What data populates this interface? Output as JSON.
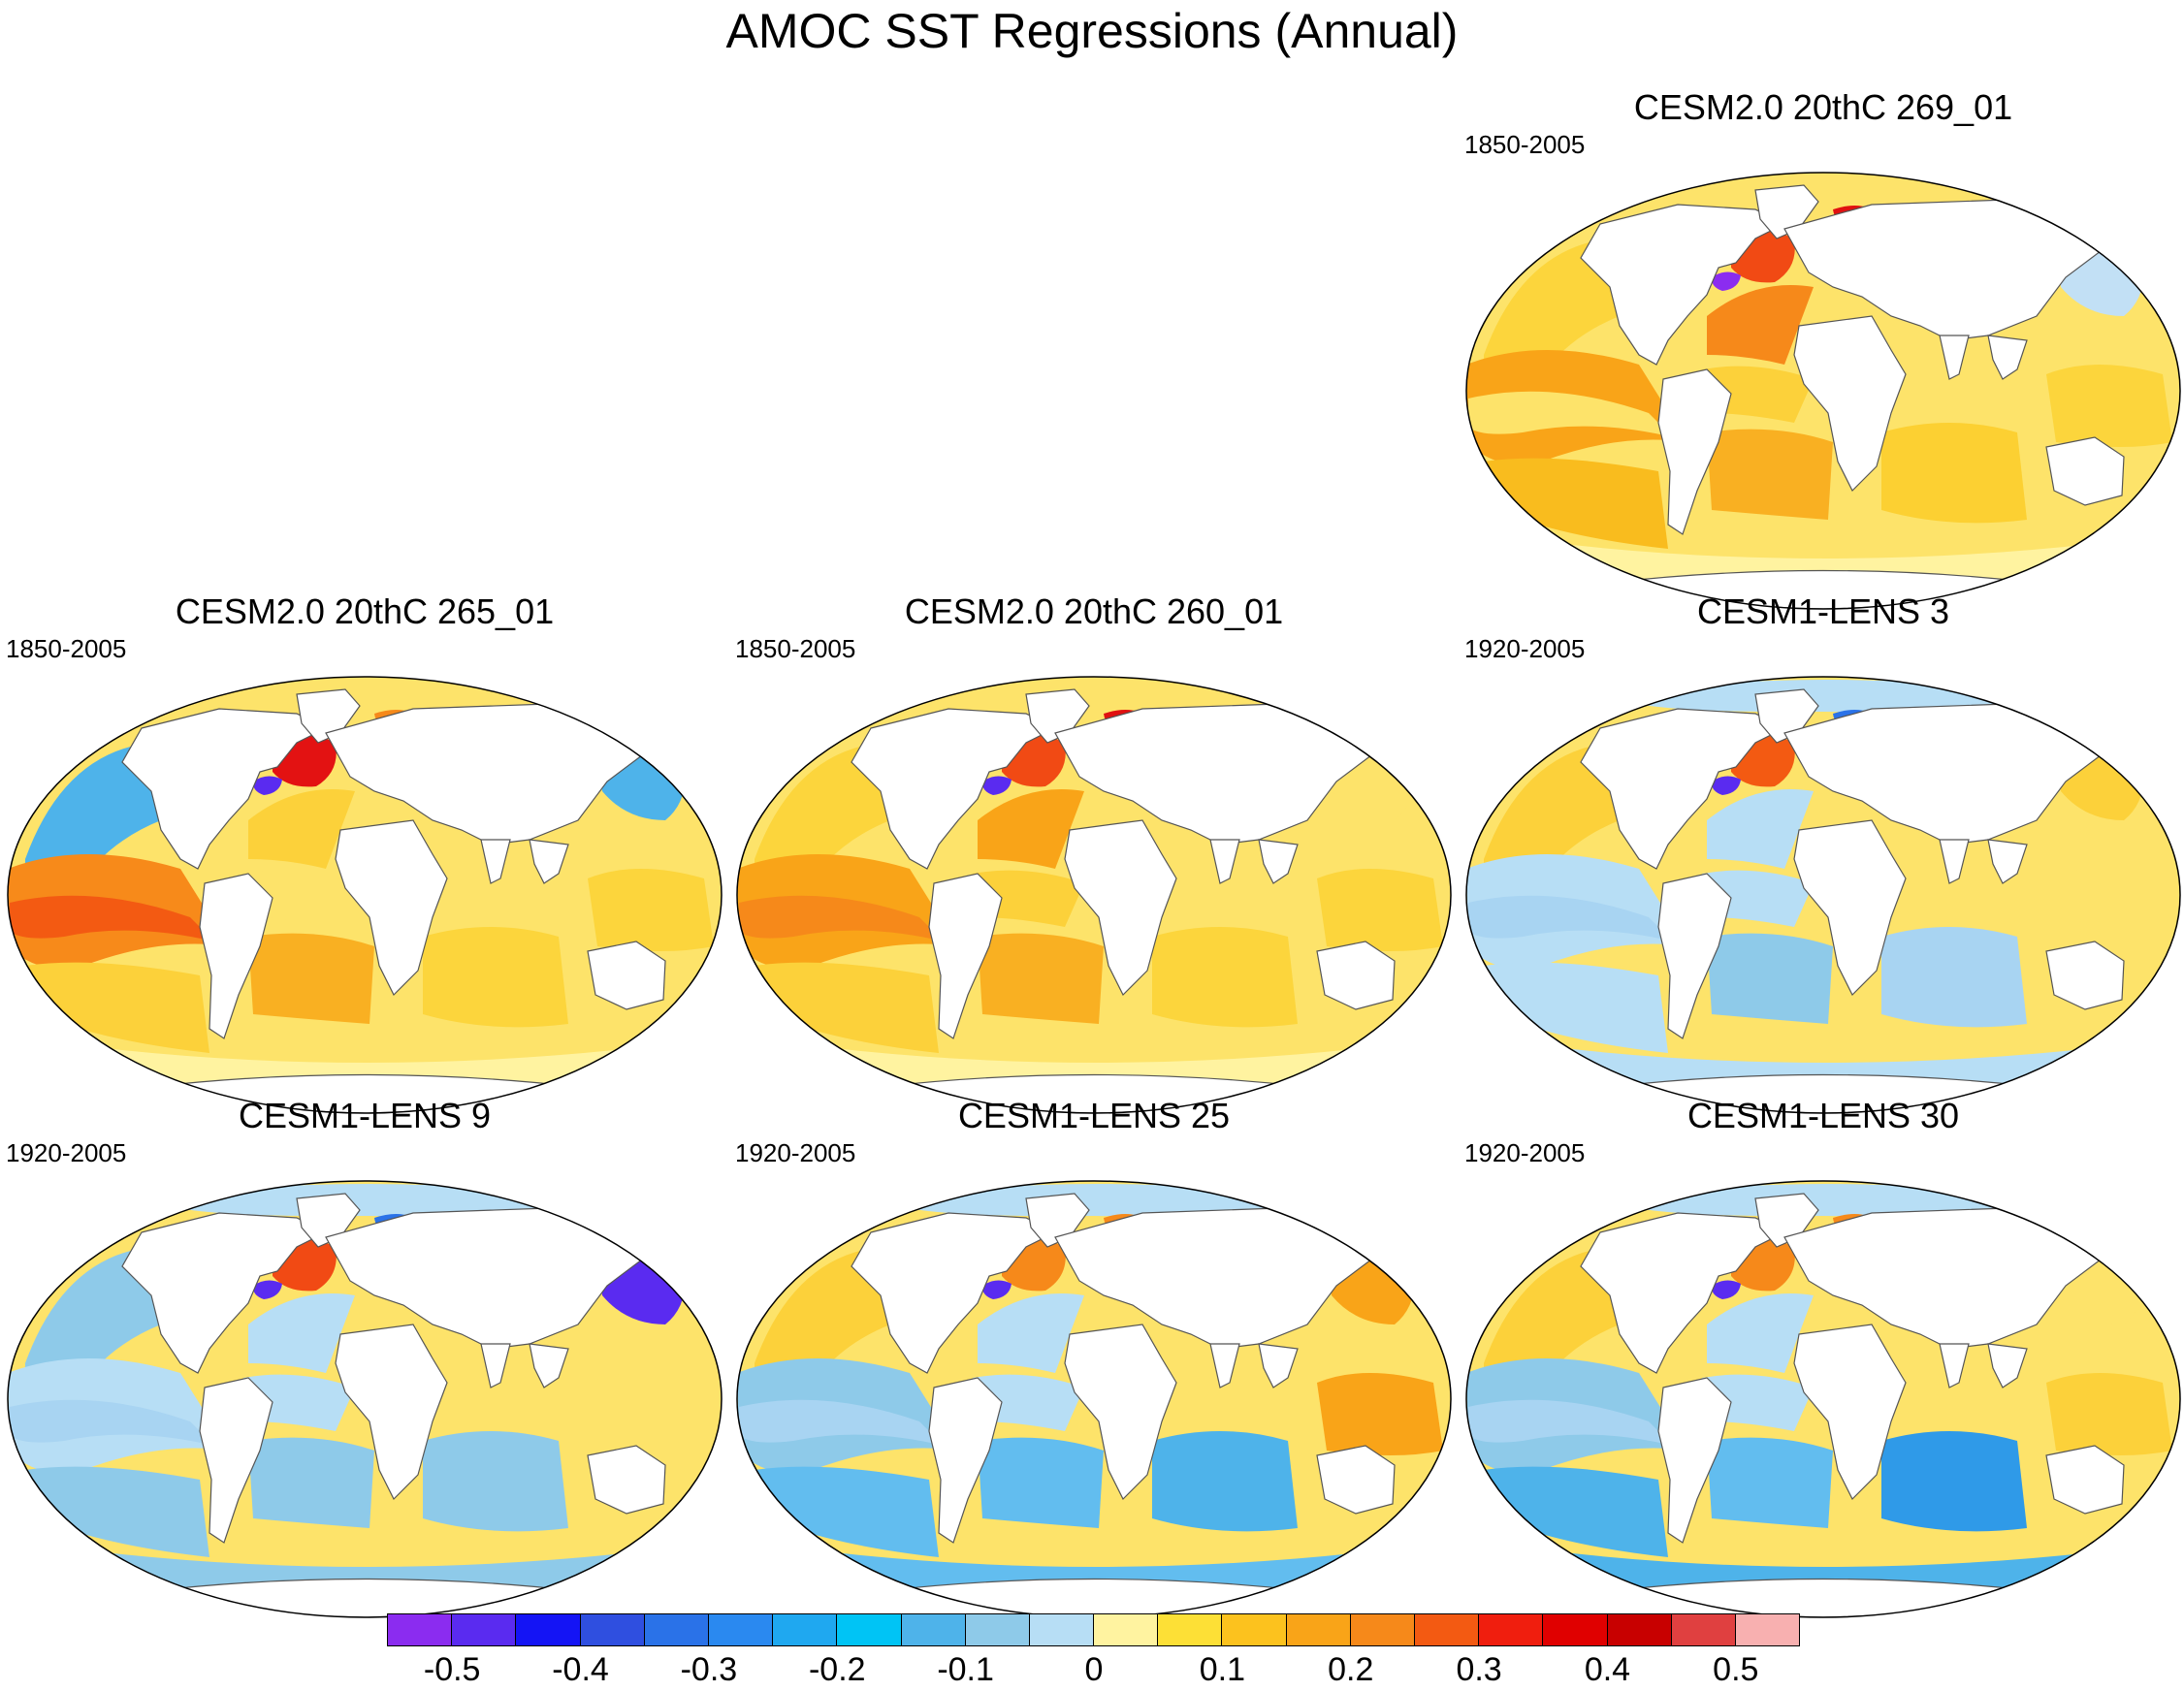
{
  "title": "AMOC SST Regressions (Annual)",
  "panels": [
    {
      "title": "CESM2.0 20thC 269_01",
      "period": "1850-2005",
      "regions": {
        "north-pacific": "#fcd53c",
        "tropical-pacific": "#f9a418",
        "equatorial-pacific": "#fde36a",
        "south-pacific": "#f9bc1e",
        "north-atlantic": "#f6891a",
        "subpolar-gyre": "#f14a14",
        "labrador-coast": "#8b2cf0",
        "tropical-atlantic": "#fcd13a",
        "south-atlantic": "#f9b022",
        "indian-ocean": "#fcd032",
        "southern-ocean": "#fff3a0",
        "arctic": "#fde36a",
        "barents-sea": "#e01010",
        "west-pacific": "#fcd53c",
        "kuroshio": "#c2e0f5"
      }
    },
    {
      "title": "CESM2.0 20thC 265_01",
      "period": "1850-2005",
      "regions": {
        "north-pacific": "#4eb3ea",
        "tropical-pacific": "#f78a1a",
        "equatorial-pacific": "#f35a12",
        "south-pacific": "#fcd13a",
        "north-atlantic": "#fcd13a",
        "subpolar-gyre": "#e31212",
        "labrador-coast": "#5a2bf0",
        "tropical-atlantic": "#fde36a",
        "south-atlantic": "#f9b022",
        "indian-ocean": "#fcd53c",
        "southern-ocean": "#fff3a0",
        "arctic": "#fde36a",
        "barents-sea": "#f6891a",
        "west-pacific": "#fcd53c",
        "kuroshio": "#4eb3ea"
      }
    },
    {
      "title": "CESM2.0 20thC 260_01",
      "period": "1850-2005",
      "regions": {
        "north-pacific": "#fcd53c",
        "tropical-pacific": "#f9a418",
        "equatorial-pacific": "#f6891a",
        "south-pacific": "#fcd13a",
        "north-atlantic": "#f9a418",
        "subpolar-gyre": "#f14a14",
        "labrador-coast": "#5a2bf0",
        "tropical-atlantic": "#fcd13a",
        "south-atlantic": "#f9b022",
        "indian-ocean": "#fcd53c",
        "southern-ocean": "#fff3a0",
        "arctic": "#fde36a",
        "barents-sea": "#e01010",
        "west-pacific": "#fcd53c",
        "kuroshio": "#fde36a"
      }
    },
    {
      "title": "CESM1-LENS 3",
      "period": "1920-2005",
      "regions": {
        "north-pacific": "#fcd13a",
        "tropical-pacific": "#b7def5",
        "equatorial-pacific": "#a8d4f2",
        "south-pacific": "#b7def5",
        "north-atlantic": "#b7def5",
        "subpolar-gyre": "#f35a12",
        "labrador-coast": "#5a2bf0",
        "tropical-atlantic": "#b7def5",
        "south-atlantic": "#8ecae9",
        "indian-ocean": "#a8d4f2",
        "southern-ocean": "#b7def5",
        "arctic": "#b7def5",
        "barents-sea": "#2a72e8",
        "west-pacific": "#fde36a",
        "kuroshio": "#fcd13a"
      }
    },
    {
      "title": "CESM1-LENS 9",
      "period": "1920-2005",
      "regions": {
        "north-pacific": "#8ecae9",
        "tropical-pacific": "#b7def5",
        "equatorial-pacific": "#a8d4f2",
        "south-pacific": "#8ecae9",
        "north-atlantic": "#b7def5",
        "subpolar-gyre": "#f14a14",
        "labrador-coast": "#5a2bf0",
        "tropical-atlantic": "#b7def5",
        "south-atlantic": "#8ecae9",
        "indian-ocean": "#8ecae9",
        "southern-ocean": "#8ecae9",
        "arctic": "#b7def5",
        "barents-sea": "#2a72e8",
        "west-pacific": "#fde36a",
        "kuroshio": "#5a2bf0"
      }
    },
    {
      "title": "CESM1-LENS 25",
      "period": "1920-2005",
      "regions": {
        "north-pacific": "#fcd13a",
        "tropical-pacific": "#8ecae9",
        "equatorial-pacific": "#a8d4f2",
        "south-pacific": "#62bdef",
        "north-atlantic": "#b7def5",
        "subpolar-gyre": "#f6891a",
        "labrador-coast": "#5a2bf0",
        "tropical-atlantic": "#b7def5",
        "south-atlantic": "#62bdef",
        "indian-ocean": "#4eb3ea",
        "southern-ocean": "#62bdef",
        "arctic": "#b7def5",
        "barents-sea": "#f6891a",
        "west-pacific": "#f9a418",
        "kuroshio": "#f9a418"
      }
    },
    {
      "title": "CESM1-LENS 30",
      "period": "1920-2005",
      "regions": {
        "north-pacific": "#fcd13a",
        "tropical-pacific": "#8ecae9",
        "equatorial-pacific": "#a8d4f2",
        "south-pacific": "#4eb3ea",
        "north-atlantic": "#b7def5",
        "subpolar-gyre": "#f6891a",
        "labrador-coast": "#5a2bf0",
        "tropical-atlantic": "#b7def5",
        "south-atlantic": "#62bdef",
        "indian-ocean": "#2f9ae8",
        "southern-ocean": "#4eb3ea",
        "arctic": "#b7def5",
        "barents-sea": "#f6891a",
        "west-pacific": "#fcd13a",
        "kuroshio": "#fde36a"
      }
    }
  ],
  "colorbar": {
    "colors": [
      "#8b2cf0",
      "#5a2bf0",
      "#1414f5",
      "#2f4fe0",
      "#2a72e8",
      "#2a89f0",
      "#1fa8f0",
      "#00c4f5",
      "#4eb3ea",
      "#8ecae9",
      "#b7def5",
      "#fff3a0",
      "#fde036",
      "#fcc21e",
      "#f9a418",
      "#f6891a",
      "#f35a12",
      "#f01e0e",
      "#e00000",
      "#c80000",
      "#e04040",
      "#f8b0b0"
    ],
    "labels": [
      "-0.5",
      "-0.4",
      "-0.3",
      "-0.2",
      "-0.1",
      "0",
      "0.1",
      "0.2",
      "0.3",
      "0.4",
      "0.5"
    ],
    "label_values": [
      -0.5,
      -0.4,
      -0.3,
      -0.2,
      -0.1,
      0,
      0.1,
      0.2,
      0.3,
      0.4,
      0.5
    ],
    "range": [
      -0.55,
      0.55
    ]
  }
}
